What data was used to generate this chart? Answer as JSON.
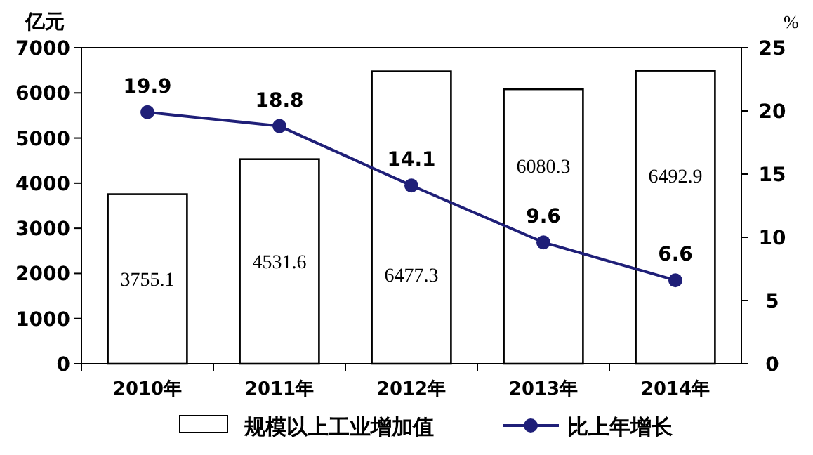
{
  "chart_data": {
    "type": "bar",
    "categories": [
      "2010年",
      "2011年",
      "2012年",
      "2013年",
      "2014年"
    ],
    "series": [
      {
        "name": "规模以上工业增加值",
        "color": "#ffffff",
        "values": [
          3755.1,
          4531.6,
          6477.3,
          6080.3,
          6492.9
        ]
      },
      {
        "type": "line",
        "name": "比上年增长",
        "color": "#1f1f78",
        "axis": "y2",
        "marker": "circle",
        "values": [
          19.9,
          18.8,
          14.1,
          9.6,
          6.6
        ]
      }
    ],
    "ylabel": "亿元",
    "y2label": "%",
    "ylim": [
      0,
      7000
    ],
    "yticks": [
      0,
      1000,
      2000,
      3000,
      4000,
      5000,
      6000,
      7000
    ],
    "y2lim": [
      0,
      25
    ],
    "y2ticks": [
      0,
      5,
      10,
      15,
      20,
      25
    ],
    "data_labels": true,
    "legend": "bottom"
  }
}
